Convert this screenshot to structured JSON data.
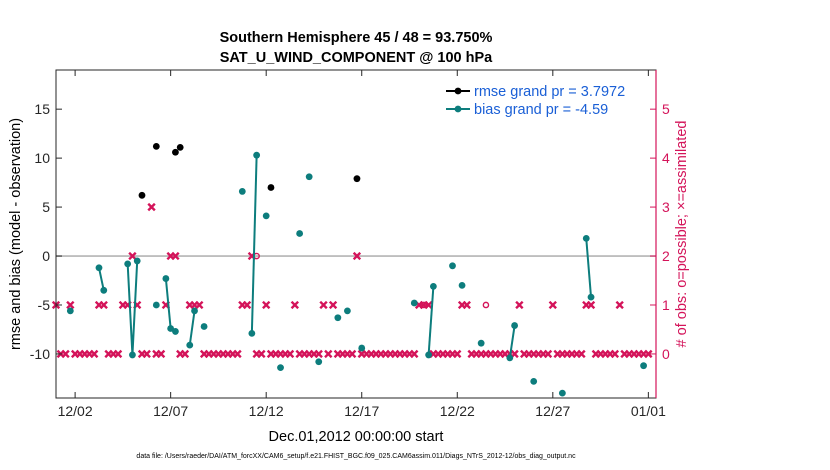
{
  "chart_data": {
    "type": "scatter",
    "title": [
      "Southern Hemisphere 45 / 48 = 93.750%",
      "SAT_U_WIND_COMPONENT @ 100 hPa"
    ],
    "xlabel": "Dec.01,2012 00:00:00 start",
    "ylabel": "rmse and bias (model - observation)",
    "y2label": "# of obs: o=possible; ×=assimilated",
    "footnote": "data file: /Users/raeder/DAI/ATM_forcXX/CAM6_setup/f.e21.FHIST_BGC.f09_025.CAM6assim.011/Diags_NTrS_2012-12/obs_diag_output.nc",
    "xlim": [
      0,
      31.4
    ],
    "ylim": [
      -14.5,
      19
    ],
    "y2lim": [
      -0.9,
      5.8
    ],
    "x_ticks": [
      1,
      6,
      11,
      16,
      21,
      26,
      31
    ],
    "x_tick_labels": [
      "12/02",
      "12/07",
      "12/12",
      "12/17",
      "12/22",
      "12/27",
      "01/01"
    ],
    "y_ticks": [
      -10,
      -5,
      0,
      5,
      10,
      15
    ],
    "y_tick_labels": [
      "-10",
      "-5",
      "0",
      "5",
      "10",
      "15"
    ],
    "y2_ticks": [
      0,
      1,
      2,
      3,
      4,
      5
    ],
    "y2_tick_labels": [
      "0",
      "1",
      "2",
      "3",
      "4",
      "5"
    ],
    "zero_line": 0,
    "colors": {
      "rmse": "#000000",
      "bias": "#0d7d7d",
      "obs": "#d4145a",
      "zero": "#b4b4b4",
      "legend_text": "#1a5fd6"
    },
    "legend": [
      {
        "label": "rmse grand pr = 3.7972",
        "color": "#000000"
      },
      {
        "label": "bias grand pr = -4.59",
        "color": "#0d7d7d"
      }
    ],
    "series": [
      {
        "name": "rmse",
        "points": [
          [
            4.5,
            6.2
          ],
          [
            5.25,
            11.2
          ],
          [
            6.25,
            10.6
          ],
          [
            6.5,
            11.1
          ],
          [
            11.25,
            7.0
          ],
          [
            15.75,
            7.9
          ]
        ]
      },
      {
        "name": "bias",
        "segments": [
          [
            [
              0.75,
              -5.6
            ]
          ],
          [
            [
              2.25,
              -1.2
            ],
            [
              2.5,
              -3.5
            ]
          ],
          [
            [
              3.75,
              -0.8
            ],
            [
              4.0,
              -10.1
            ],
            [
              4.25,
              -0.5
            ]
          ],
          [
            [
              5.25,
              -5.0
            ]
          ],
          [
            [
              5.75,
              -2.3
            ],
            [
              6.0,
              -7.4
            ],
            [
              6.25,
              -7.7
            ]
          ],
          [
            [
              7.0,
              -9.1
            ],
            [
              7.25,
              -5.6
            ]
          ],
          [
            [
              7.75,
              -7.2
            ]
          ],
          [
            [
              9.75,
              6.6
            ]
          ],
          [
            [
              10.25,
              -7.9
            ],
            [
              10.5,
              10.3
            ]
          ],
          [
            [
              11.0,
              4.1
            ]
          ],
          [
            [
              11.75,
              -11.4
            ]
          ],
          [
            [
              12.75,
              2.3
            ]
          ],
          [
            [
              13.25,
              8.1
            ]
          ],
          [
            [
              13.75,
              -10.8
            ]
          ],
          [
            [
              14.75,
              -6.3
            ]
          ],
          [
            [
              15.25,
              -5.6
            ]
          ],
          [
            [
              16.0,
              -9.4
            ]
          ],
          [
            [
              18.75,
              -4.8
            ]
          ],
          [
            [
              19.5,
              -10.1
            ],
            [
              19.75,
              -3.1
            ]
          ],
          [
            [
              20.75,
              -1.0
            ]
          ],
          [
            [
              21.25,
              -3.0
            ]
          ],
          [
            [
              22.25,
              -8.9
            ]
          ],
          [
            [
              23.75,
              -10.4
            ],
            [
              24.0,
              -7.1
            ]
          ],
          [
            [
              25.0,
              -12.8
            ]
          ],
          [
            [
              26.5,
              -14.0
            ]
          ],
          [
            [
              27.75,
              1.8
            ],
            [
              28.0,
              -4.2
            ]
          ],
          [
            [
              30.75,
              -11.2
            ]
          ]
        ]
      },
      {
        "name": "obs_assimilated",
        "marker": "x",
        "x": [
          0.0,
          0.25,
          0.5,
          0.75,
          1.0,
          1.25,
          1.5,
          1.75,
          2.0,
          2.25,
          2.5,
          2.75,
          3.0,
          3.25,
          3.5,
          3.75,
          4.0,
          4.25,
          4.5,
          4.75,
          5.0,
          5.25,
          5.5,
          5.75,
          6.0,
          6.25,
          6.5,
          6.75,
          7.0,
          7.25,
          7.5,
          7.75,
          8.0,
          8.25,
          8.5,
          8.75,
          9.0,
          9.25,
          9.5,
          9.75,
          10.0,
          10.25,
          10.5,
          10.75,
          11.0,
          11.25,
          11.5,
          11.75,
          12.0,
          12.25,
          12.5,
          12.75,
          13.0,
          13.25,
          13.5,
          13.75,
          14.0,
          14.25,
          14.5,
          14.75,
          15.0,
          15.25,
          15.5,
          15.75,
          16.0,
          16.25,
          16.5,
          16.75,
          17.0,
          17.25,
          17.5,
          17.75,
          18.0,
          18.25,
          18.5,
          18.75,
          19.0,
          19.25,
          19.5,
          19.75,
          20.0,
          20.25,
          20.5,
          20.75,
          21.0,
          21.25,
          21.5,
          21.75,
          22.0,
          22.25,
          22.5,
          22.75,
          23.0,
          23.25,
          23.5,
          23.75,
          24.0,
          24.25,
          24.5,
          24.75,
          25.0,
          25.25,
          25.5,
          25.75,
          26.0,
          26.25,
          26.5,
          26.75,
          27.0,
          27.25,
          27.5,
          27.75,
          28.0,
          28.25,
          28.5,
          28.75,
          29.0,
          29.25,
          29.5,
          29.75,
          30.0,
          30.25,
          30.5,
          30.75,
          31.0
        ],
        "y": [
          1,
          0,
          0,
          1,
          0,
          0,
          0,
          0,
          0,
          1,
          1,
          0,
          0,
          0,
          1,
          1,
          2,
          1,
          0,
          0,
          3,
          0,
          0,
          1,
          2,
          2,
          0,
          0,
          1,
          1,
          1,
          0,
          0,
          0,
          0,
          0,
          0,
          0,
          0,
          1,
          1,
          2,
          0,
          0,
          1,
          0,
          0,
          0,
          0,
          0,
          1,
          0,
          0,
          0,
          0,
          0,
          1,
          0,
          1,
          0,
          0,
          0,
          0,
          2,
          0,
          0,
          0,
          0,
          0,
          0,
          0,
          0,
          0,
          0,
          0,
          0,
          1,
          1,
          1,
          0,
          0,
          0,
          0,
          0,
          0,
          1,
          1,
          0,
          0,
          0,
          0,
          0,
          0,
          0,
          0,
          0,
          0,
          1,
          0,
          0,
          0,
          0,
          0,
          0,
          1,
          0,
          0,
          0,
          0,
          0,
          0,
          1,
          1,
          0,
          0,
          0,
          0,
          0,
          1,
          0,
          0,
          0,
          0,
          0,
          0
        ]
      },
      {
        "name": "obs_possible",
        "marker": "o",
        "x": [
          10.5,
          19.25,
          22.5
        ],
        "y": [
          2,
          1,
          1
        ]
      }
    ]
  }
}
